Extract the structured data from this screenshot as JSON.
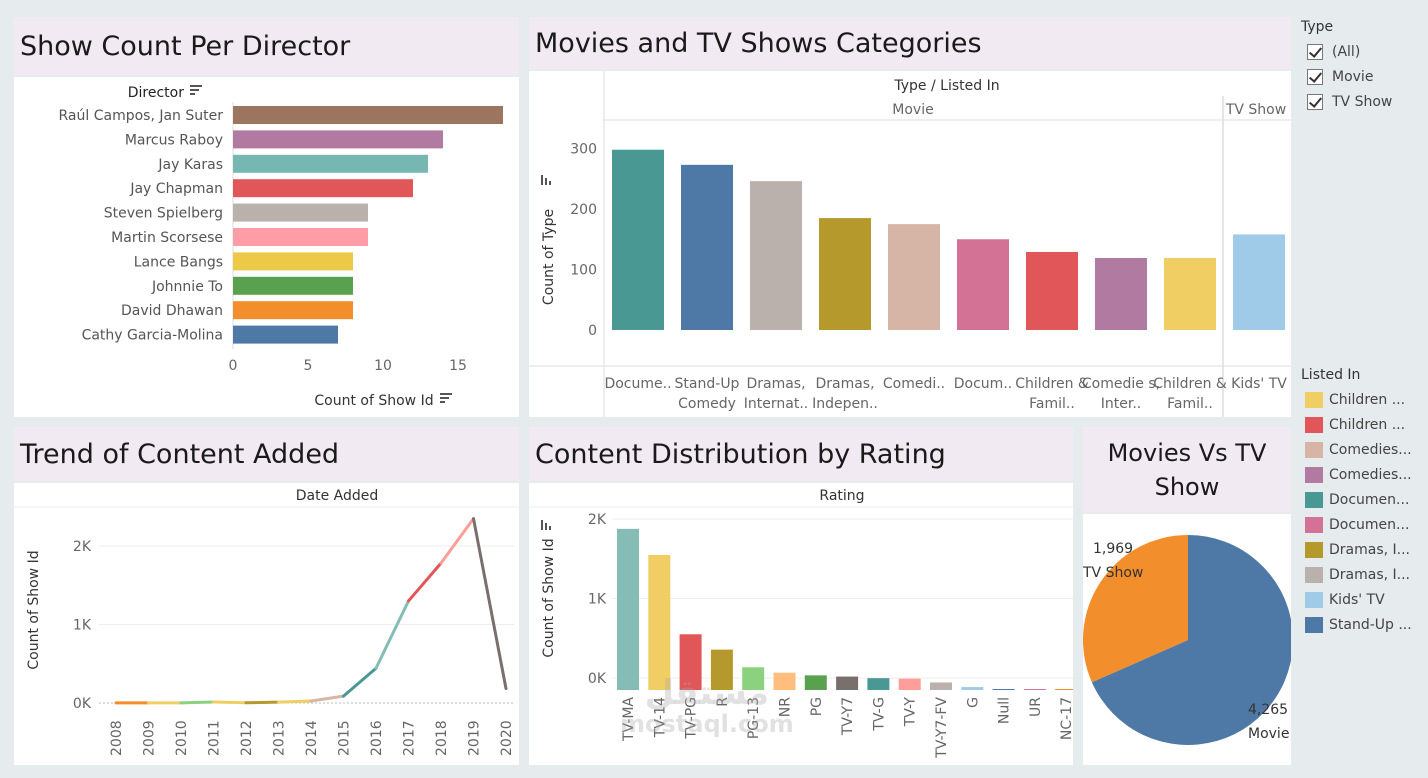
{
  "titles": {
    "directors": "Show Count Per Director",
    "categories": "Movies and TV Shows Categories",
    "trend": "Trend of Content Added",
    "rating": "Content Distribution by Rating",
    "pie": "Movies Vs TV Show"
  },
  "filter": {
    "title": "Type",
    "items": [
      "(All)",
      "Movie",
      "TV Show"
    ]
  },
  "legend": {
    "title": "Listed In",
    "items": [
      {
        "label": "Children ...",
        "color": "#f1ce63"
      },
      {
        "label": "Children ...",
        "color": "#e15759"
      },
      {
        "label": "Comedies...",
        "color": "#d7b5a6"
      },
      {
        "label": "Comedies...",
        "color": "#b07aa1"
      },
      {
        "label": "Documen...",
        "color": "#499894"
      },
      {
        "label": "Documen...",
        "color": "#d37295"
      },
      {
        "label": "Dramas, I...",
        "color": "#b6992d"
      },
      {
        "label": "Dramas, I...",
        "color": "#bab0ac"
      },
      {
        "label": "Kids' TV",
        "color": "#a0cbe8"
      },
      {
        "label": "Stand-Up ...",
        "color": "#4e79a7"
      }
    ]
  },
  "watermark": {
    "line1": "مستقل",
    "line2": "mostaql.com"
  },
  "chart_data": [
    {
      "type": "bar",
      "orientation": "horizontal",
      "title": "Show Count Per Director",
      "ylabel": "Director",
      "xlabel": "Count of Show Id",
      "xlim": [
        0,
        19
      ],
      "xticks": [
        0,
        5,
        10,
        15
      ],
      "categories": [
        "Raúl Campos, Jan Suter",
        "Marcus Raboy",
        "Jay Karas",
        "Jay Chapman",
        "Steven Spielberg",
        "Martin Scorsese",
        "Lance Bangs",
        "Johnnie To",
        "David Dhawan",
        "Cathy Garcia-Molina"
      ],
      "values": [
        18,
        14,
        13,
        12,
        9,
        9,
        8,
        8,
        8,
        7
      ],
      "colors": [
        "#9c755f",
        "#b07aa1",
        "#76b7b2",
        "#e15759",
        "#bab0ac",
        "#ff9da7",
        "#edc948",
        "#59a14f",
        "#f28e2b",
        "#4e79a7"
      ]
    },
    {
      "type": "bar",
      "title": "Movies and TV Shows Categories",
      "header": "Type / Listed In",
      "groups": [
        {
          "name": "Movie",
          "categories": [
            "Docume..",
            "Stand-Up Comedy",
            "Dramas, Internat..",
            "Dramas, Indepen..",
            "Comedi..",
            "Docum..",
            "Children & Famil..",
            "Comedie s, Inter..",
            "Children & Famil.."
          ],
          "values": [
            298,
            273,
            246,
            185,
            175,
            150,
            129,
            119,
            119
          ],
          "colors": [
            "#499894",
            "#4e79a7",
            "#bab0ac",
            "#b6992d",
            "#d7b5a6",
            "#d37295",
            "#e15759",
            "#b07aa1",
            "#f1ce63"
          ]
        },
        {
          "name": "TV Show",
          "categories": [
            "Kids' TV"
          ],
          "values": [
            158
          ],
          "colors": [
            "#a0cbe8"
          ]
        }
      ],
      "ylabel": "Count of Type",
      "ylim": [
        -60,
        320
      ],
      "yticks": [
        0,
        100,
        200,
        300
      ]
    },
    {
      "type": "line",
      "title": "Trend of Content Added",
      "header": "Date Added",
      "x": [
        "2008",
        "2009",
        "2010",
        "2011",
        "2012",
        "2013",
        "2014",
        "2015",
        "2016",
        "2017",
        "2018",
        "2019",
        "2020"
      ],
      "values": [
        2,
        2,
        1,
        13,
        3,
        11,
        25,
        88,
        443,
        1300,
        1782,
        2349,
        184
      ],
      "ylabel": "Count of Show Id",
      "ylim": [
        -50,
        2500
      ],
      "yticks": [
        0,
        1000,
        2000
      ],
      "yticklabels": [
        "0K",
        "1K",
        "2K"
      ]
    },
    {
      "type": "bar",
      "title": "Content Distribution by Rating",
      "header": "Rating",
      "categories": [
        "TV-MA",
        "TV-14",
        "TV-PG",
        "R",
        "PG-13",
        "NR",
        "PG",
        "TV-Y7",
        "TV-G",
        "TV-Y",
        "TV-Y7-FV",
        "G",
        "Null",
        "UR",
        "NC-17"
      ],
      "values": [
        2027,
        1698,
        701,
        508,
        286,
        218,
        184,
        169,
        149,
        143,
        95,
        37,
        10,
        7,
        2
      ],
      "colors": [
        "#86bcb6",
        "#f1ce63",
        "#e15759",
        "#b6992d",
        "#8cd17d",
        "#ffbe7d",
        "#59a14f",
        "#79706e",
        "#499894",
        "#ff9d9a",
        "#bab0ac",
        "#a0cbe8",
        "#4e79a7",
        "#d37295",
        "#f28e2b"
      ],
      "ylabel": "Count of Show Id",
      "ylim": [
        -50,
        2150
      ],
      "yticks": [
        0,
        1000,
        2000
      ],
      "yticklabels": [
        "0K",
        "1K",
        "2K"
      ]
    },
    {
      "type": "pie",
      "title": "Movies Vs TV Show",
      "slices": [
        {
          "label": "Movie",
          "value": 4265,
          "display": "4,265",
          "color": "#4e79a7"
        },
        {
          "label": "TV Show",
          "value": 1969,
          "display": "1,969",
          "color": "#f28e2b"
        }
      ]
    }
  ]
}
